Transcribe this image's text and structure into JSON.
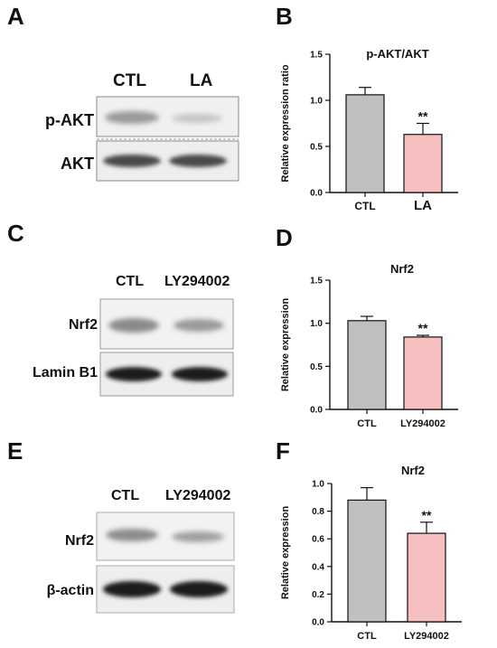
{
  "panels": {
    "A": {
      "letter": "A",
      "lanes": [
        "CTL",
        "LA"
      ],
      "rows": [
        "p-AKT",
        "AKT"
      ]
    },
    "B": {
      "letter": "B"
    },
    "C": {
      "letter": "C",
      "lanes": [
        "CTL",
        "LY294002"
      ],
      "rows": [
        "Nrf2",
        "Lamin B1"
      ]
    },
    "D": {
      "letter": "D"
    },
    "E": {
      "letter": "E",
      "lanes": [
        "CTL",
        "LY294002"
      ],
      "rows": [
        "Nrf2",
        "β-actin"
      ]
    },
    "F": {
      "letter": "F"
    }
  },
  "colors": {
    "ctl_bar": "#c0c0c0",
    "treat_bar": "#f7c0c0",
    "axis": "#111111"
  },
  "chart_data": [
    {
      "panel": "B",
      "type": "bar",
      "title": "p-AKT/AKT",
      "ylabel": "Relative expression ratio",
      "categories": [
        "CTL",
        "LA"
      ],
      "values": [
        1.06,
        0.63
      ],
      "errors": [
        0.08,
        0.12
      ],
      "significance": [
        "",
        "**"
      ],
      "ylim": [
        0,
        1.5
      ],
      "yticks": [
        "0.0",
        "0.5",
        "1.0",
        "1.5"
      ],
      "ytick_values": [
        0,
        0.5,
        1.0,
        1.5
      ]
    },
    {
      "panel": "D",
      "type": "bar",
      "title": "Nrf2",
      "ylabel": "Relative expression",
      "categories": [
        "CTL",
        "LY294002"
      ],
      "values": [
        1.03,
        0.84
      ],
      "errors": [
        0.05,
        0.02
      ],
      "significance": [
        "",
        "**"
      ],
      "ylim": [
        0,
        1.5
      ],
      "yticks": [
        "0.0",
        "0.5",
        "1.0",
        "1.5"
      ],
      "ytick_values": [
        0,
        0.5,
        1.0,
        1.5
      ]
    },
    {
      "panel": "F",
      "type": "bar",
      "title": "Nrf2",
      "ylabel": "Relative expression",
      "categories": [
        "CTL",
        "LY294002"
      ],
      "values": [
        0.88,
        0.64
      ],
      "errors": [
        0.09,
        0.08
      ],
      "significance": [
        "",
        "**"
      ],
      "ylim": [
        0,
        1.0
      ],
      "yticks": [
        "0.0",
        "0.2",
        "0.4",
        "0.6",
        "0.8",
        "1.0"
      ],
      "ytick_values": [
        0,
        0.2,
        0.4,
        0.6,
        0.8,
        1.0
      ]
    }
  ]
}
